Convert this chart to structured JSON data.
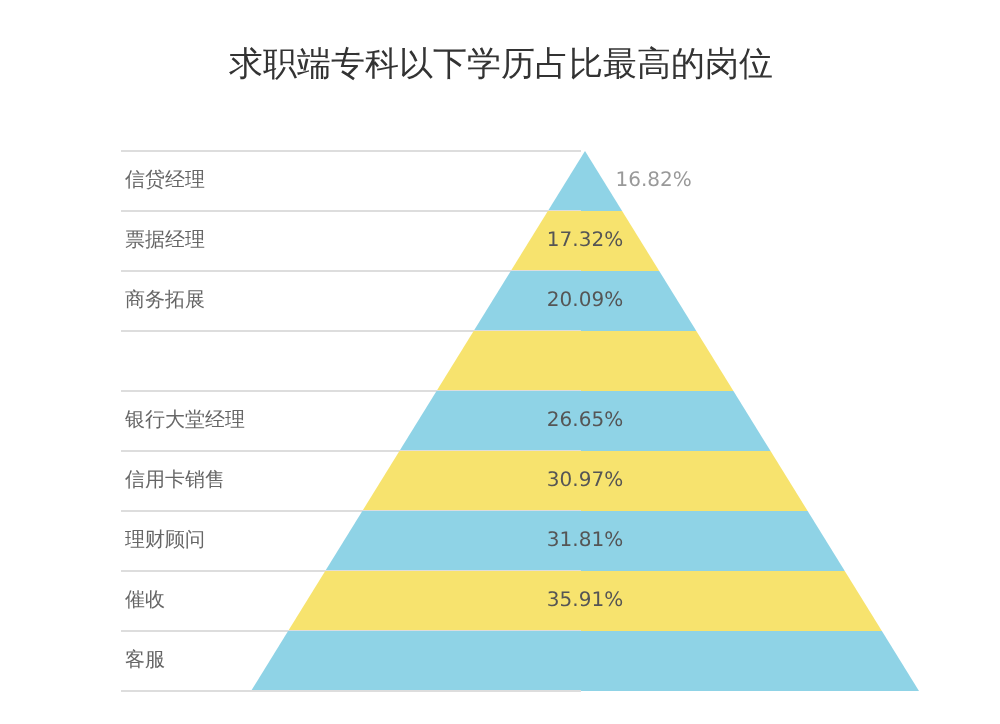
{
  "chart_data": {
    "type": "other",
    "title": "求职端专科以下学历占比最高的岗位",
    "categories": [
      "信贷经理",
      "票据经理",
      "商务拓展",
      null,
      "银行大堂经理",
      "信用卡销售",
      "理财顾问",
      "催收",
      "客服"
    ],
    "values": [
      16.82,
      17.32,
      20.09,
      null,
      26.65,
      30.97,
      31.81,
      35.91,
      null
    ],
    "value_labels": [
      "16.82%",
      "17.32%",
      "20.09%",
      null,
      "26.65%",
      "30.97%",
      "31.81%",
      "35.91%",
      null
    ],
    "colors": [
      "#8fd3e6",
      "#f7e36e",
      "#8fd3e6",
      "#f7e36e",
      "#8fd3e6",
      "#f7e36e",
      "#8fd3e6",
      "#f7e36e",
      "#8fd3e6"
    ]
  }
}
